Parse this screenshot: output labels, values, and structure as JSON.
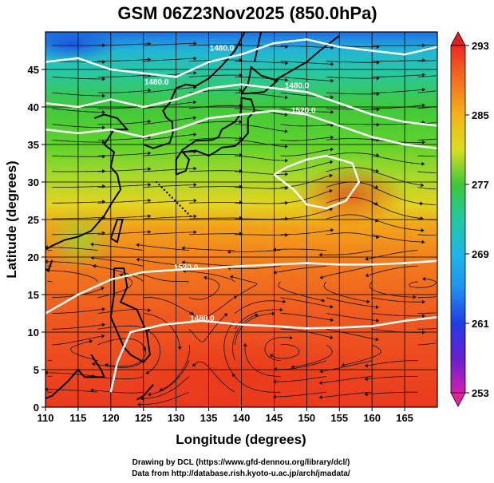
{
  "title": "GSM 06Z23Nov2025 (850.0hPa)",
  "x_axis": {
    "label": "Longitude (degrees)",
    "ticks": [
      "110",
      "115",
      "120",
      "125",
      "130",
      "135",
      "140",
      "145",
      "150",
      "155",
      "160",
      "165"
    ],
    "range": [
      110,
      170
    ]
  },
  "y_axis": {
    "label": "Latitude  (degrees)",
    "ticks": [
      "0",
      "5",
      "10",
      "15",
      "20",
      "25",
      "30",
      "35",
      "40",
      "45"
    ],
    "range": [
      0,
      50
    ]
  },
  "colorbar": {
    "labels": [
      "293",
      "285",
      "277",
      "269",
      "261",
      "253"
    ],
    "range": [
      253,
      293
    ],
    "low_color": "#e8209c",
    "high_color": "#e02020"
  },
  "contours": [
    {
      "label": "1480.0",
      "lon": 137.0,
      "lat": 47.5
    },
    {
      "label": "1480.0",
      "lon": 127.0,
      "lat": 43.0
    },
    {
      "label": "1480.0",
      "lon": 148.5,
      "lat": 42.5
    },
    {
      "label": "1520.0",
      "lon": 149.5,
      "lat": 39.2
    },
    {
      "label": "1520.0",
      "lon": 131.5,
      "lat": 18.3
    },
    {
      "label": "1480.0",
      "lon": 134.0,
      "lat": 11.5
    }
  ],
  "credits": {
    "line1": "Drawing by DCL (https://www.gfd-dennou.org/library/dcl/)",
    "line2": "Data from http://database.rish.kyoto-u.ac.jp/arch/jmadata/"
  }
}
